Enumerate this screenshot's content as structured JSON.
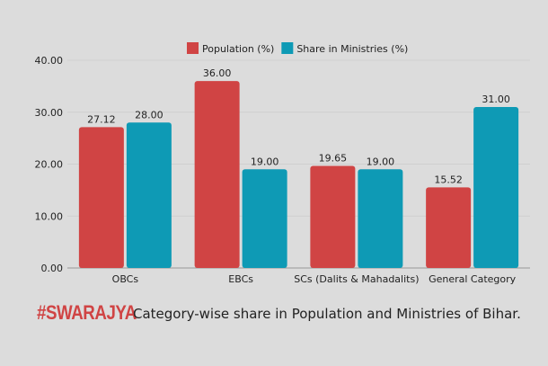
{
  "chart_data": {
    "type": "bar",
    "categories": [
      "OBCs",
      "EBCs",
      "SCs (Dalits & Mahadalits)",
      "General Category"
    ],
    "series": [
      {
        "name": "Population (%)",
        "color": "#d04444",
        "values": [
          27.12,
          36.0,
          19.65,
          15.52
        ]
      },
      {
        "name": "Share in Ministries (%)",
        "color": "#0e9ab5",
        "values": [
          28.0,
          19.0,
          19.0,
          31.0
        ]
      }
    ],
    "ylim": [
      0,
      40
    ],
    "yticks": [
      "0.00",
      "10.00",
      "20.00",
      "30.00",
      "40.00"
    ],
    "legend_position": "top-center",
    "grid": true
  },
  "footer": {
    "brand": "#SWARAJYA",
    "caption": "Category-wise share in Population and Ministries of Bihar."
  }
}
